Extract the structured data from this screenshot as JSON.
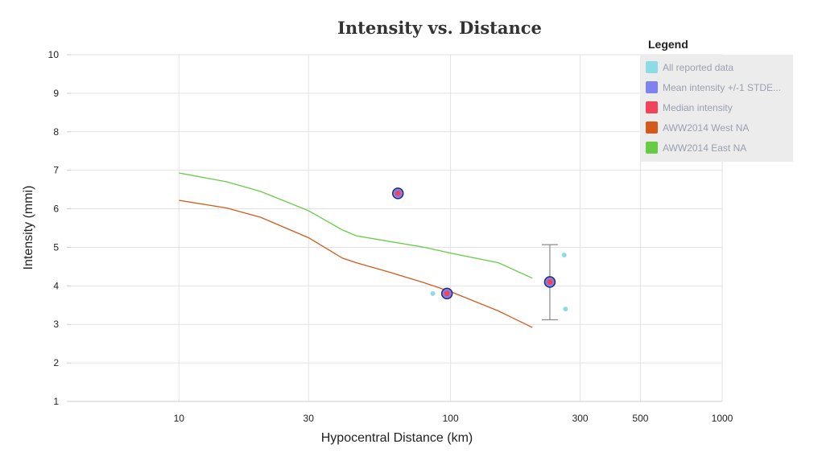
{
  "chart_data": {
    "type": "scatter",
    "title": "Intensity vs. Distance",
    "xlabel": "Hypocentral Distance (km)",
    "ylabel": "Intensity (mmi)",
    "xscale": "log",
    "xlim": [
      4,
      1000
    ],
    "ylim": [
      1,
      10
    ],
    "xticks": [
      10,
      30,
      100,
      300,
      500,
      1000
    ],
    "yticks": [
      1,
      2,
      3,
      4,
      5,
      6,
      7,
      8,
      9,
      10
    ],
    "grid": true,
    "legend_title": "Legend",
    "legend_position": "top-right",
    "series": [
      {
        "name": "All reported data",
        "kind": "points",
        "color": "#8edbe8",
        "points": [
          [
            64,
            6.4
          ],
          [
            86,
            3.8
          ],
          [
            262,
            4.8
          ],
          [
            265,
            3.4
          ]
        ]
      },
      {
        "name": "Mean intensity +/-1 STDE...",
        "kind": "errorbars",
        "color": "#7d84f0",
        "points": [
          [
            64,
            6.4,
            6.4,
            6.4
          ],
          [
            97,
            3.8,
            3.8,
            3.8
          ],
          [
            232,
            4.1,
            3.12,
            5.07
          ]
        ]
      },
      {
        "name": "Median intensity",
        "kind": "markers",
        "color": "#f2435a",
        "points": [
          [
            64,
            6.4
          ],
          [
            97,
            3.8
          ],
          [
            232,
            4.1
          ]
        ]
      },
      {
        "name": "AWW2014 West NA",
        "kind": "line",
        "color": "#d45a1c",
        "points": [
          [
            10,
            6.22
          ],
          [
            15,
            6.02
          ],
          [
            20,
            5.78
          ],
          [
            30,
            5.25
          ],
          [
            40,
            4.72
          ],
          [
            45,
            4.6
          ],
          [
            60,
            4.35
          ],
          [
            80,
            4.08
          ],
          [
            100,
            3.85
          ],
          [
            150,
            3.35
          ],
          [
            200,
            2.92
          ]
        ]
      },
      {
        "name": "AWW2014 East NA",
        "kind": "line",
        "color": "#66cc44",
        "points": [
          [
            10,
            6.93
          ],
          [
            15,
            6.7
          ],
          [
            20,
            6.45
          ],
          [
            30,
            5.95
          ],
          [
            40,
            5.45
          ],
          [
            45,
            5.3
          ],
          [
            60,
            5.15
          ],
          [
            80,
            5.0
          ],
          [
            100,
            4.85
          ],
          [
            150,
            4.6
          ],
          [
            200,
            4.2
          ]
        ]
      }
    ]
  }
}
